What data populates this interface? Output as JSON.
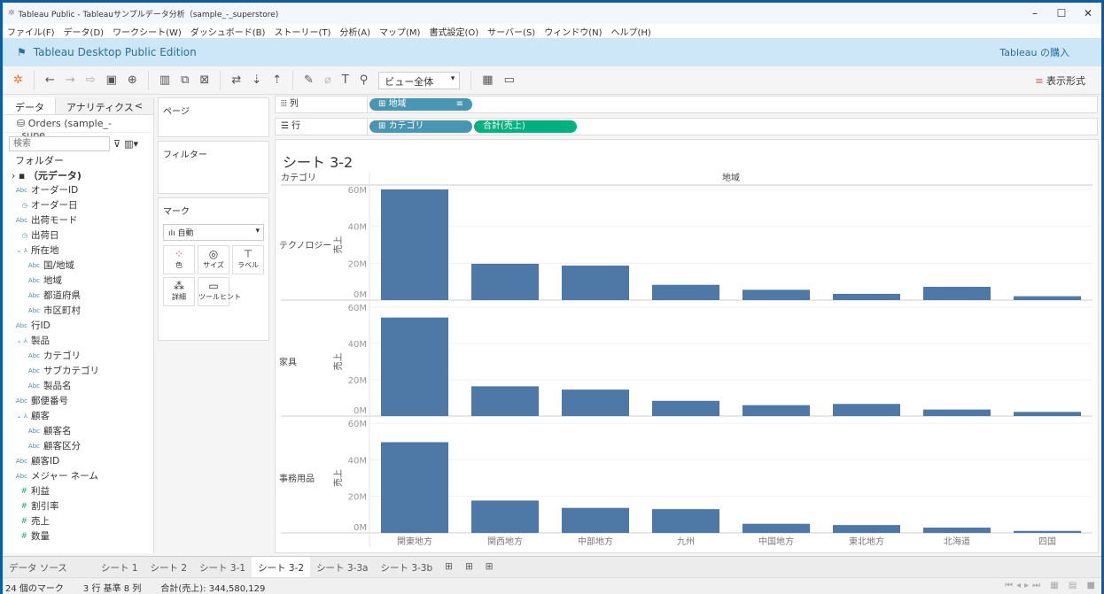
{
  "window": {
    "title": "Tableau Public - Tableauサンプルデータ分析（sample_-_superstore)",
    "minimize": "–",
    "maximize": "☐",
    "close": "✕"
  },
  "menu": [
    "ファイル(F)",
    "データ(D)",
    "ワークシート(W)",
    "ダッシュボード(B)",
    "ストーリー(T)",
    "分析(A)",
    "マップ(M)",
    "書式設定(O)",
    "サーバー(S)",
    "ウィンドウ(N)",
    "ヘルプ(H)"
  ],
  "banner": {
    "edition": "Tableau Desktop Public Edition",
    "buy": "Tableau の購入"
  },
  "toolbar": {
    "view_select": "ビュー全体",
    "show_me": "表示形式"
  },
  "left": {
    "tab_data": "データ",
    "tab_analytics": "アナリティクス",
    "collapse": "<",
    "source": "Orders (sample_-_supe…",
    "search_placeholder": "検索",
    "folders": "フォルダー",
    "root": "（元データ)",
    "fields": [
      {
        "label": "オーダーID",
        "type": "Abc",
        "indent": 0
      },
      {
        "label": "オーダー日",
        "type": "date",
        "indent": 0
      },
      {
        "label": "出荷モード",
        "type": "Abc",
        "indent": 0
      },
      {
        "label": "出荷日",
        "type": "date",
        "indent": 0
      },
      {
        "label": "所在地",
        "type": "hier",
        "indent": 0
      },
      {
        "label": "国/地域",
        "type": "Abc",
        "indent": 1
      },
      {
        "label": "地域",
        "type": "Abc",
        "indent": 1
      },
      {
        "label": "都道府県",
        "type": "Abc",
        "indent": 1
      },
      {
        "label": "市区町村",
        "type": "Abc",
        "indent": 1
      },
      {
        "label": "行ID",
        "type": "Abc",
        "indent": 0
      },
      {
        "label": "製品",
        "type": "hier",
        "indent": 0
      },
      {
        "label": "カテゴリ",
        "type": "Abc",
        "indent": 1
      },
      {
        "label": "サブカテゴリ",
        "type": "Abc",
        "indent": 1
      },
      {
        "label": "製品名",
        "type": "Abc",
        "indent": 1
      },
      {
        "label": "郵便番号",
        "type": "Abc",
        "indent": 0
      },
      {
        "label": "顧客",
        "type": "hier",
        "indent": 0
      },
      {
        "label": "顧客名",
        "type": "Abc",
        "indent": 1
      },
      {
        "label": "顧客区分",
        "type": "Abc",
        "indent": 1
      },
      {
        "label": "顧客ID",
        "type": "Abc",
        "indent": 0
      },
      {
        "label": "メジャー ネーム",
        "type": "Abc",
        "indent": 0
      },
      {
        "label": "利益",
        "type": "measure",
        "indent": 0
      },
      {
        "label": "割引率",
        "type": "measure",
        "indent": 0
      },
      {
        "label": "売上",
        "type": "measure",
        "indent": 0
      },
      {
        "label": "数量",
        "type": "measure",
        "indent": 0
      }
    ]
  },
  "cards": {
    "pages": "ページ",
    "filters": "フィルター",
    "marks": "マーク",
    "mark_type": "自動",
    "color": "色",
    "size": "サイズ",
    "label": "ラベル",
    "detail": "詳細",
    "tooltip": "ツールヒント"
  },
  "shelves": {
    "columns_label": "列",
    "rows_label": "行",
    "columns_pill": "地域",
    "rows_pill1": "カテゴリ",
    "rows_pill2": "合計(売上)",
    "dim_color": "#4996b2",
    "measure_color": "#00b180"
  },
  "sheet_tabs": [
    "シート 1",
    "シート 2",
    "シート 3-1",
    "シート 3-2",
    "シート 3-3a",
    "シート 3-3b"
  ],
  "data_source_tab": "データ ソース",
  "active_tab": "シート 3-2",
  "status": {
    "marks": "24 個のマーク",
    "dims": "3 行 基準 8 列",
    "sum": "合計(売上): 344,580,129"
  },
  "chart_data": {
    "type": "bar",
    "title": "シート 3-2",
    "row_header": "カテゴリ",
    "col_header": "地域",
    "ylabel": "売上",
    "ylim": [
      0,
      60000000
    ],
    "yticks": [
      "0M",
      "20M",
      "40M",
      "60M"
    ],
    "bar_color": "#4e79a7",
    "categories": [
      "関東地方",
      "関西地方",
      "中部地方",
      "九州",
      "中国地方",
      "東北地方",
      "北海道",
      "四国"
    ],
    "series": [
      {
        "name": "テクノロジー",
        "values": [
          60000000,
          19700000,
          18700000,
          8300000,
          5600000,
          3400000,
          7200000,
          2100000
        ]
      },
      {
        "name": "家具",
        "values": [
          54300000,
          16400000,
          14600000,
          8400000,
          6000000,
          6700000,
          3600000,
          2300000
        ]
      },
      {
        "name": "事務用品",
        "values": [
          49600000,
          17700000,
          13700000,
          13000000,
          5000000,
          4300000,
          2900000,
          1100000
        ]
      }
    ]
  }
}
